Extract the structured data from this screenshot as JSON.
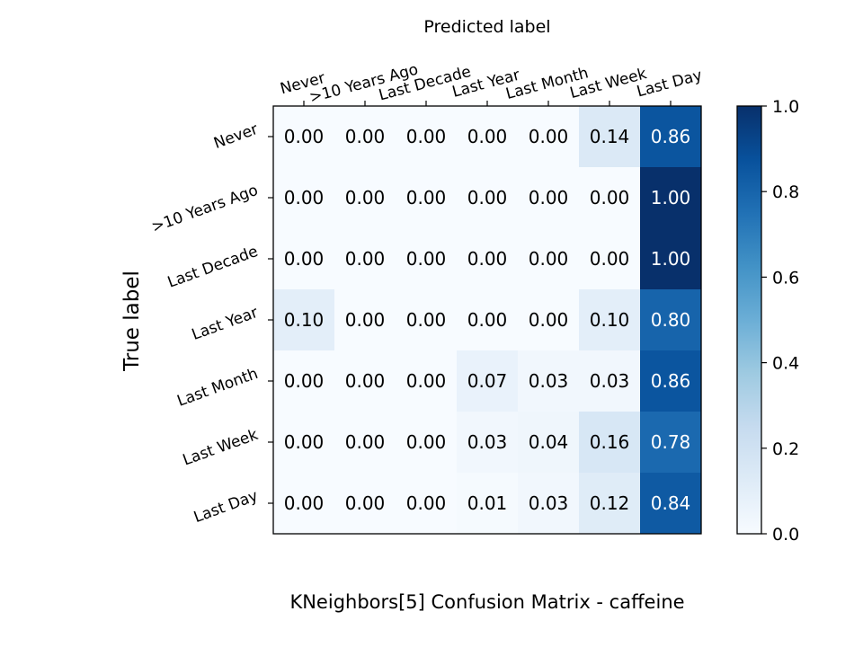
{
  "chart_data": {
    "type": "heatmap",
    "title": "KNeighbors[5]  Confusion Matrix - caffeine",
    "xlabel": "Predicted label",
    "ylabel": "True label",
    "x_categories": [
      "Never",
      ">10 Years Ago",
      "Last Decade",
      "Last Year",
      "Last Month",
      "Last Week",
      "Last Day"
    ],
    "y_categories": [
      "Never",
      ">10 Years Ago",
      "Last Decade",
      "Last Year",
      "Last Month",
      "Last Week",
      "Last Day"
    ],
    "values": [
      [
        0.0,
        0.0,
        0.0,
        0.0,
        0.0,
        0.14,
        0.86
      ],
      [
        0.0,
        0.0,
        0.0,
        0.0,
        0.0,
        0.0,
        1.0
      ],
      [
        0.0,
        0.0,
        0.0,
        0.0,
        0.0,
        0.0,
        1.0
      ],
      [
        0.1,
        0.0,
        0.0,
        0.0,
        0.0,
        0.1,
        0.8
      ],
      [
        0.0,
        0.0,
        0.0,
        0.07,
        0.03,
        0.03,
        0.86
      ],
      [
        0.0,
        0.0,
        0.0,
        0.03,
        0.04,
        0.16,
        0.78
      ],
      [
        0.0,
        0.0,
        0.0,
        0.01,
        0.03,
        0.12,
        0.84
      ]
    ],
    "value_format": "0.00",
    "colorscale": "Blues",
    "colorbar": {
      "range": [
        0.0,
        1.0
      ],
      "ticks": [
        "0.0",
        "0.2",
        "0.4",
        "0.6",
        "0.8",
        "1.0"
      ]
    },
    "x_axis_position": "top",
    "grid": false
  }
}
